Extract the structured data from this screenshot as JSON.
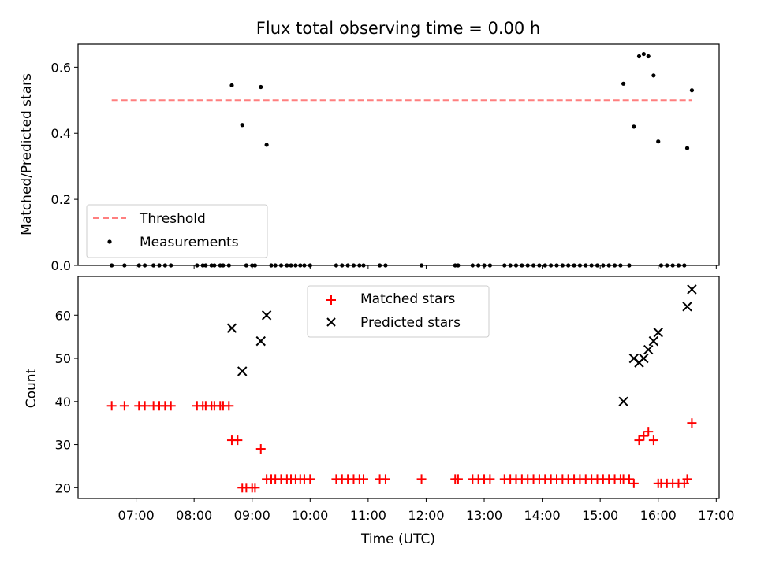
{
  "chart_data": {
    "title": "Flux total observing time = 0.00 h",
    "xlabel": "Time (UTC)",
    "x_unit": "hours (UTC)",
    "xlim": [
      6.0,
      17.05
    ],
    "x_ticks": [
      7,
      8,
      9,
      10,
      11,
      12,
      13,
      14,
      15,
      16,
      17
    ],
    "x_tick_labels": [
      "07:00",
      "08:00",
      "09:00",
      "10:00",
      "11:00",
      "12:00",
      "13:00",
      "14:00",
      "15:00",
      "16:00",
      "17:00"
    ],
    "top_panel": {
      "type": "scatter",
      "ylabel": "Matched/Predicted stars",
      "ylim": [
        0,
        0.67
      ],
      "y_ticks": [
        0.0,
        0.2,
        0.4,
        0.6
      ],
      "y_tick_labels": [
        "0.0",
        "0.2",
        "0.4",
        "0.6"
      ],
      "legend_position": "lower-left",
      "threshold": {
        "name": "Threshold",
        "value": 0.5,
        "x_range": [
          6.58,
          16.58
        ],
        "color": "#ff7f7f",
        "style": "dashed"
      },
      "measurements": {
        "name": "Measurements",
        "color": "#000000",
        "x": [
          6.58,
          6.8,
          7.05,
          7.15,
          7.3,
          7.4,
          7.5,
          7.6,
          8.05,
          8.15,
          8.2,
          8.3,
          8.35,
          8.45,
          8.5,
          8.6,
          8.65,
          8.83,
          8.9,
          9.0,
          9.05,
          9.15,
          9.25,
          9.33,
          9.4,
          9.5,
          9.6,
          9.67,
          9.75,
          9.83,
          9.9,
          10.0,
          10.45,
          10.55,
          10.65,
          10.75,
          10.85,
          10.92,
          11.2,
          11.3,
          11.92,
          12.5,
          12.55,
          12.8,
          12.9,
          13.0,
          13.1,
          13.35,
          13.45,
          13.55,
          13.65,
          13.75,
          13.85,
          13.95,
          14.05,
          14.15,
          14.25,
          14.35,
          14.45,
          14.55,
          14.65,
          14.75,
          14.85,
          14.95,
          15.05,
          15.15,
          15.25,
          15.35,
          15.4,
          15.5,
          15.58,
          15.67,
          15.75,
          15.83,
          15.92,
          16.0,
          16.05,
          16.15,
          16.25,
          16.35,
          16.45,
          16.5,
          16.58
        ],
        "y": [
          0,
          0,
          0,
          0,
          0,
          0,
          0,
          0,
          0,
          0,
          0,
          0,
          0,
          0,
          0,
          0,
          0.545,
          0.425,
          0,
          0,
          0,
          0.54,
          0.365,
          0,
          0,
          0,
          0,
          0,
          0,
          0,
          0,
          0,
          0,
          0,
          0,
          0,
          0,
          0,
          0,
          0,
          0,
          0,
          0,
          0,
          0,
          0,
          0,
          0,
          0,
          0,
          0,
          0,
          0,
          0,
          0,
          0,
          0,
          0,
          0,
          0,
          0,
          0,
          0,
          0,
          0,
          0,
          0,
          0,
          0.55,
          0,
          0.42,
          0.633,
          0.64,
          0.633,
          0.575,
          0.375,
          0,
          0,
          0,
          0,
          0,
          0.355,
          0.53
        ]
      }
    },
    "bottom_panel": {
      "type": "scatter",
      "ylabel": "Count",
      "ylim": [
        17.5,
        69
      ],
      "y_ticks": [
        20,
        30,
        40,
        50,
        60
      ],
      "y_tick_labels": [
        "20",
        "30",
        "40",
        "50",
        "60"
      ],
      "legend_position": "top-center",
      "series": [
        {
          "name": "Matched stars",
          "marker": "+",
          "color": "#ff0000",
          "x": [
            6.58,
            6.8,
            7.05,
            7.15,
            7.3,
            7.4,
            7.5,
            7.6,
            8.05,
            8.15,
            8.2,
            8.3,
            8.35,
            8.45,
            8.5,
            8.6,
            8.65,
            8.75,
            8.83,
            8.9,
            9.0,
            9.05,
            9.15,
            9.25,
            9.33,
            9.4,
            9.5,
            9.6,
            9.67,
            9.75,
            9.83,
            9.9,
            10.0,
            10.45,
            10.55,
            10.65,
            10.75,
            10.85,
            10.92,
            11.2,
            11.3,
            11.92,
            12.5,
            12.55,
            12.8,
            12.9,
            13.0,
            13.1,
            13.35,
            13.45,
            13.55,
            13.65,
            13.75,
            13.85,
            13.95,
            14.05,
            14.15,
            14.25,
            14.35,
            14.45,
            14.55,
            14.65,
            14.75,
            14.85,
            14.95,
            15.05,
            15.15,
            15.25,
            15.35,
            15.4,
            15.5,
            15.58,
            15.67,
            15.75,
            15.83,
            15.92,
            16.0,
            16.05,
            16.15,
            16.25,
            16.35,
            16.45,
            16.5,
            16.58
          ],
          "y": [
            39,
            39,
            39,
            39,
            39,
            39,
            39,
            39,
            39,
            39,
            39,
            39,
            39,
            39,
            39,
            39,
            31,
            31,
            20,
            20,
            20,
            20,
            29,
            22,
            22,
            22,
            22,
            22,
            22,
            22,
            22,
            22,
            22,
            22,
            22,
            22,
            22,
            22,
            22,
            22,
            22,
            22,
            22,
            22,
            22,
            22,
            22,
            22,
            22,
            22,
            22,
            22,
            22,
            22,
            22,
            22,
            22,
            22,
            22,
            22,
            22,
            22,
            22,
            22,
            22,
            22,
            22,
            22,
            22,
            22,
            22,
            21,
            31,
            32,
            33,
            31,
            21,
            21,
            21,
            21,
            21,
            21,
            22,
            35
          ]
        },
        {
          "name": "Predicted stars",
          "marker": "x",
          "color": "#000000",
          "x": [
            8.65,
            8.83,
            9.15,
            9.25,
            15.4,
            15.58,
            15.67,
            15.75,
            15.83,
            15.92,
            16.0,
            16.5,
            16.58
          ],
          "y": [
            57,
            47,
            54,
            60,
            40,
            50,
            49,
            50,
            52,
            54,
            56,
            62,
            66
          ]
        }
      ]
    }
  }
}
